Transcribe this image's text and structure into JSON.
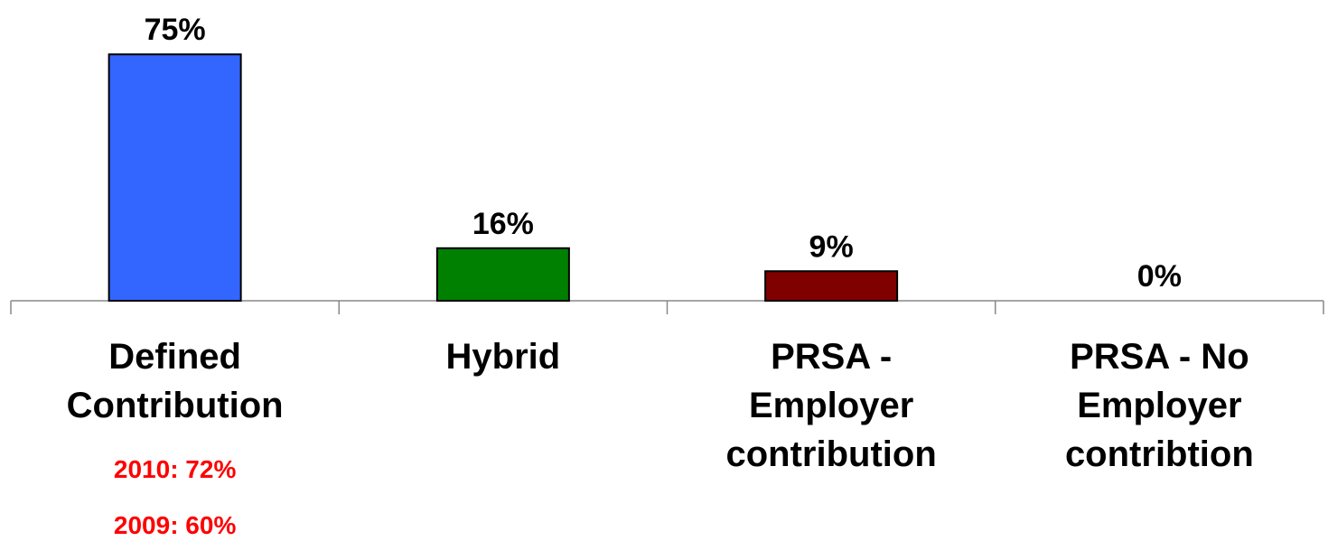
{
  "chart_data": {
    "type": "bar",
    "categories": [
      "Defined Contribution",
      "Hybrid",
      "PRSA - Employer contribution",
      "PRSA - No Employer contribtion"
    ],
    "values": [
      75,
      16,
      9,
      0
    ],
    "value_labels": [
      "75%",
      "16%",
      "9%",
      "0%"
    ],
    "colors": [
      "#3366ff",
      "#008000",
      "#800000",
      "#808080"
    ],
    "ylim": [
      0,
      80
    ],
    "annotations": [
      "2010: 72%",
      "2009: 60%"
    ]
  }
}
